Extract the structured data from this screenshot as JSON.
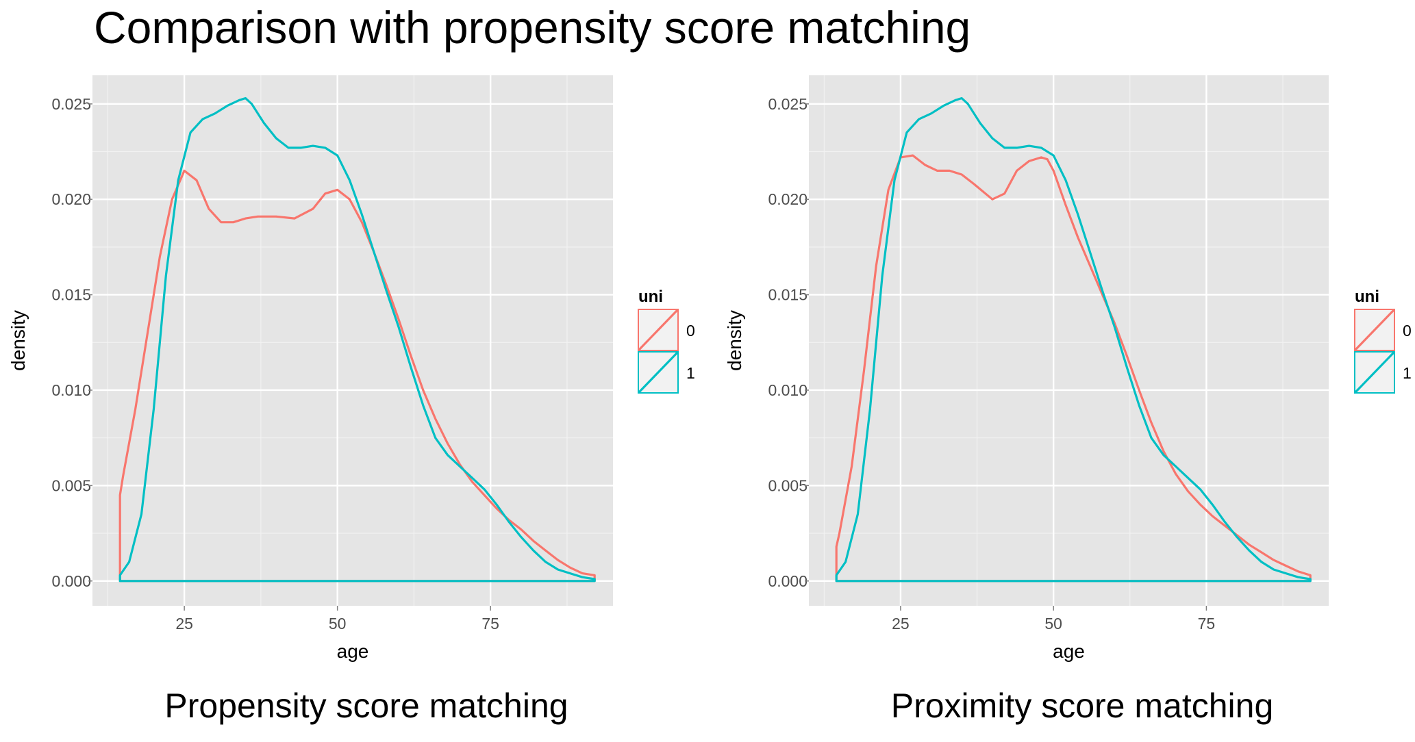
{
  "title": "Comparison with propensity score matching",
  "colors": {
    "group_0": "#F8766D",
    "group_1": "#00BFC4",
    "panel_bg": "#E5E5E5",
    "grid": "#FFFFFF",
    "tick_text": "#4D4D4D"
  },
  "chart_data": [
    {
      "type": "line",
      "caption": "Propensity score matching",
      "xlabel": "age",
      "ylabel": "density",
      "xlim": [
        10,
        95
      ],
      "ylim": [
        -0.0013,
        0.0265
      ],
      "x_ticks": [
        25,
        50,
        75
      ],
      "y_ticks": [
        0.0,
        0.005,
        0.01,
        0.015,
        0.02,
        0.025
      ],
      "y_tick_labels": [
        "0.000",
        "0.005",
        "0.010",
        "0.015",
        "0.020",
        "0.025"
      ],
      "grid": true,
      "legend": {
        "title": "uni",
        "position": "right",
        "entries": [
          "0",
          "1"
        ]
      },
      "series": [
        {
          "name": "0",
          "color": "#F8766D",
          "x": [
            14.5,
            15,
            17,
            19,
            21,
            23,
            25,
            27,
            29,
            31,
            33,
            35,
            37,
            40,
            43,
            46,
            48,
            50,
            52,
            54,
            56,
            58,
            60,
            62,
            64,
            66,
            68,
            70,
            72,
            74,
            76,
            78,
            80,
            82,
            84,
            86,
            88,
            90,
            92
          ],
          "y": [
            0.0045,
            0.0055,
            0.009,
            0.013,
            0.017,
            0.02,
            0.0215,
            0.021,
            0.0195,
            0.0188,
            0.0188,
            0.019,
            0.0191,
            0.0191,
            0.019,
            0.0195,
            0.0203,
            0.0205,
            0.02,
            0.0188,
            0.0172,
            0.0155,
            0.0137,
            0.0118,
            0.01,
            0.0085,
            0.0072,
            0.0061,
            0.0052,
            0.0045,
            0.0038,
            0.0032,
            0.0027,
            0.0021,
            0.0016,
            0.0011,
            0.0007,
            0.0004,
            0.0003
          ]
        },
        {
          "name": "1",
          "color": "#00BFC4",
          "x": [
            14.5,
            16,
            18,
            20,
            22,
            24,
            26,
            28,
            30,
            32,
            34,
            35,
            36,
            38,
            40,
            42,
            44,
            46,
            48,
            50,
            52,
            54,
            56,
            58,
            60,
            62,
            64,
            66,
            68,
            70,
            72,
            74,
            76,
            78,
            80,
            82,
            84,
            86,
            88,
            90,
            92
          ],
          "y": [
            0.0003,
            0.001,
            0.0035,
            0.009,
            0.016,
            0.021,
            0.0235,
            0.0242,
            0.0245,
            0.0249,
            0.0252,
            0.0253,
            0.025,
            0.024,
            0.0232,
            0.0227,
            0.0227,
            0.0228,
            0.0227,
            0.0223,
            0.021,
            0.0192,
            0.0172,
            0.0152,
            0.0133,
            0.0112,
            0.0092,
            0.0075,
            0.0066,
            0.006,
            0.0054,
            0.0048,
            0.004,
            0.0031,
            0.0023,
            0.0016,
            0.001,
            0.0006,
            0.0004,
            0.0002,
            0.0001
          ]
        }
      ]
    },
    {
      "type": "line",
      "caption": "Proximity score matching",
      "xlabel": "age",
      "ylabel": "density",
      "xlim": [
        10,
        95
      ],
      "ylim": [
        -0.0013,
        0.0265
      ],
      "x_ticks": [
        25,
        50,
        75
      ],
      "y_ticks": [
        0.0,
        0.005,
        0.01,
        0.015,
        0.02,
        0.025
      ],
      "y_tick_labels": [
        "0.000",
        "0.005",
        "0.010",
        "0.015",
        "0.020",
        "0.025"
      ],
      "grid": true,
      "legend": {
        "title": "uni",
        "position": "right",
        "entries": [
          "0",
          "1"
        ]
      },
      "series": [
        {
          "name": "0",
          "color": "#F8766D",
          "x": [
            14.5,
            15,
            17,
            19,
            21,
            23,
            25,
            27,
            29,
            31,
            33,
            35,
            37,
            40,
            42,
            44,
            46,
            48,
            49,
            50,
            52,
            54,
            56,
            58,
            60,
            62,
            64,
            66,
            68,
            70,
            72,
            74,
            76,
            78,
            80,
            82,
            84,
            86,
            88,
            90,
            92
          ],
          "y": [
            0.0018,
            0.0025,
            0.006,
            0.011,
            0.0165,
            0.0205,
            0.0222,
            0.0223,
            0.0218,
            0.0215,
            0.0215,
            0.0213,
            0.0208,
            0.02,
            0.0203,
            0.0215,
            0.022,
            0.0222,
            0.0221,
            0.0215,
            0.0197,
            0.018,
            0.0165,
            0.015,
            0.0135,
            0.0118,
            0.01,
            0.0083,
            0.0068,
            0.0056,
            0.0047,
            0.004,
            0.0034,
            0.0029,
            0.0024,
            0.0019,
            0.0015,
            0.0011,
            0.0008,
            0.0005,
            0.0003
          ]
        },
        {
          "name": "1",
          "color": "#00BFC4",
          "x": [
            14.5,
            16,
            18,
            20,
            22,
            24,
            26,
            28,
            30,
            32,
            34,
            35,
            36,
            38,
            40,
            42,
            44,
            46,
            48,
            50,
            52,
            54,
            56,
            58,
            60,
            62,
            64,
            66,
            68,
            70,
            72,
            74,
            76,
            78,
            80,
            82,
            84,
            86,
            88,
            90,
            92
          ],
          "y": [
            0.0003,
            0.001,
            0.0035,
            0.009,
            0.016,
            0.021,
            0.0235,
            0.0242,
            0.0245,
            0.0249,
            0.0252,
            0.0253,
            0.025,
            0.024,
            0.0232,
            0.0227,
            0.0227,
            0.0228,
            0.0227,
            0.0223,
            0.021,
            0.0192,
            0.0172,
            0.0152,
            0.0133,
            0.0112,
            0.0092,
            0.0075,
            0.0066,
            0.006,
            0.0054,
            0.0048,
            0.004,
            0.0031,
            0.0023,
            0.0016,
            0.001,
            0.0006,
            0.0004,
            0.0002,
            0.0001
          ]
        }
      ]
    }
  ]
}
